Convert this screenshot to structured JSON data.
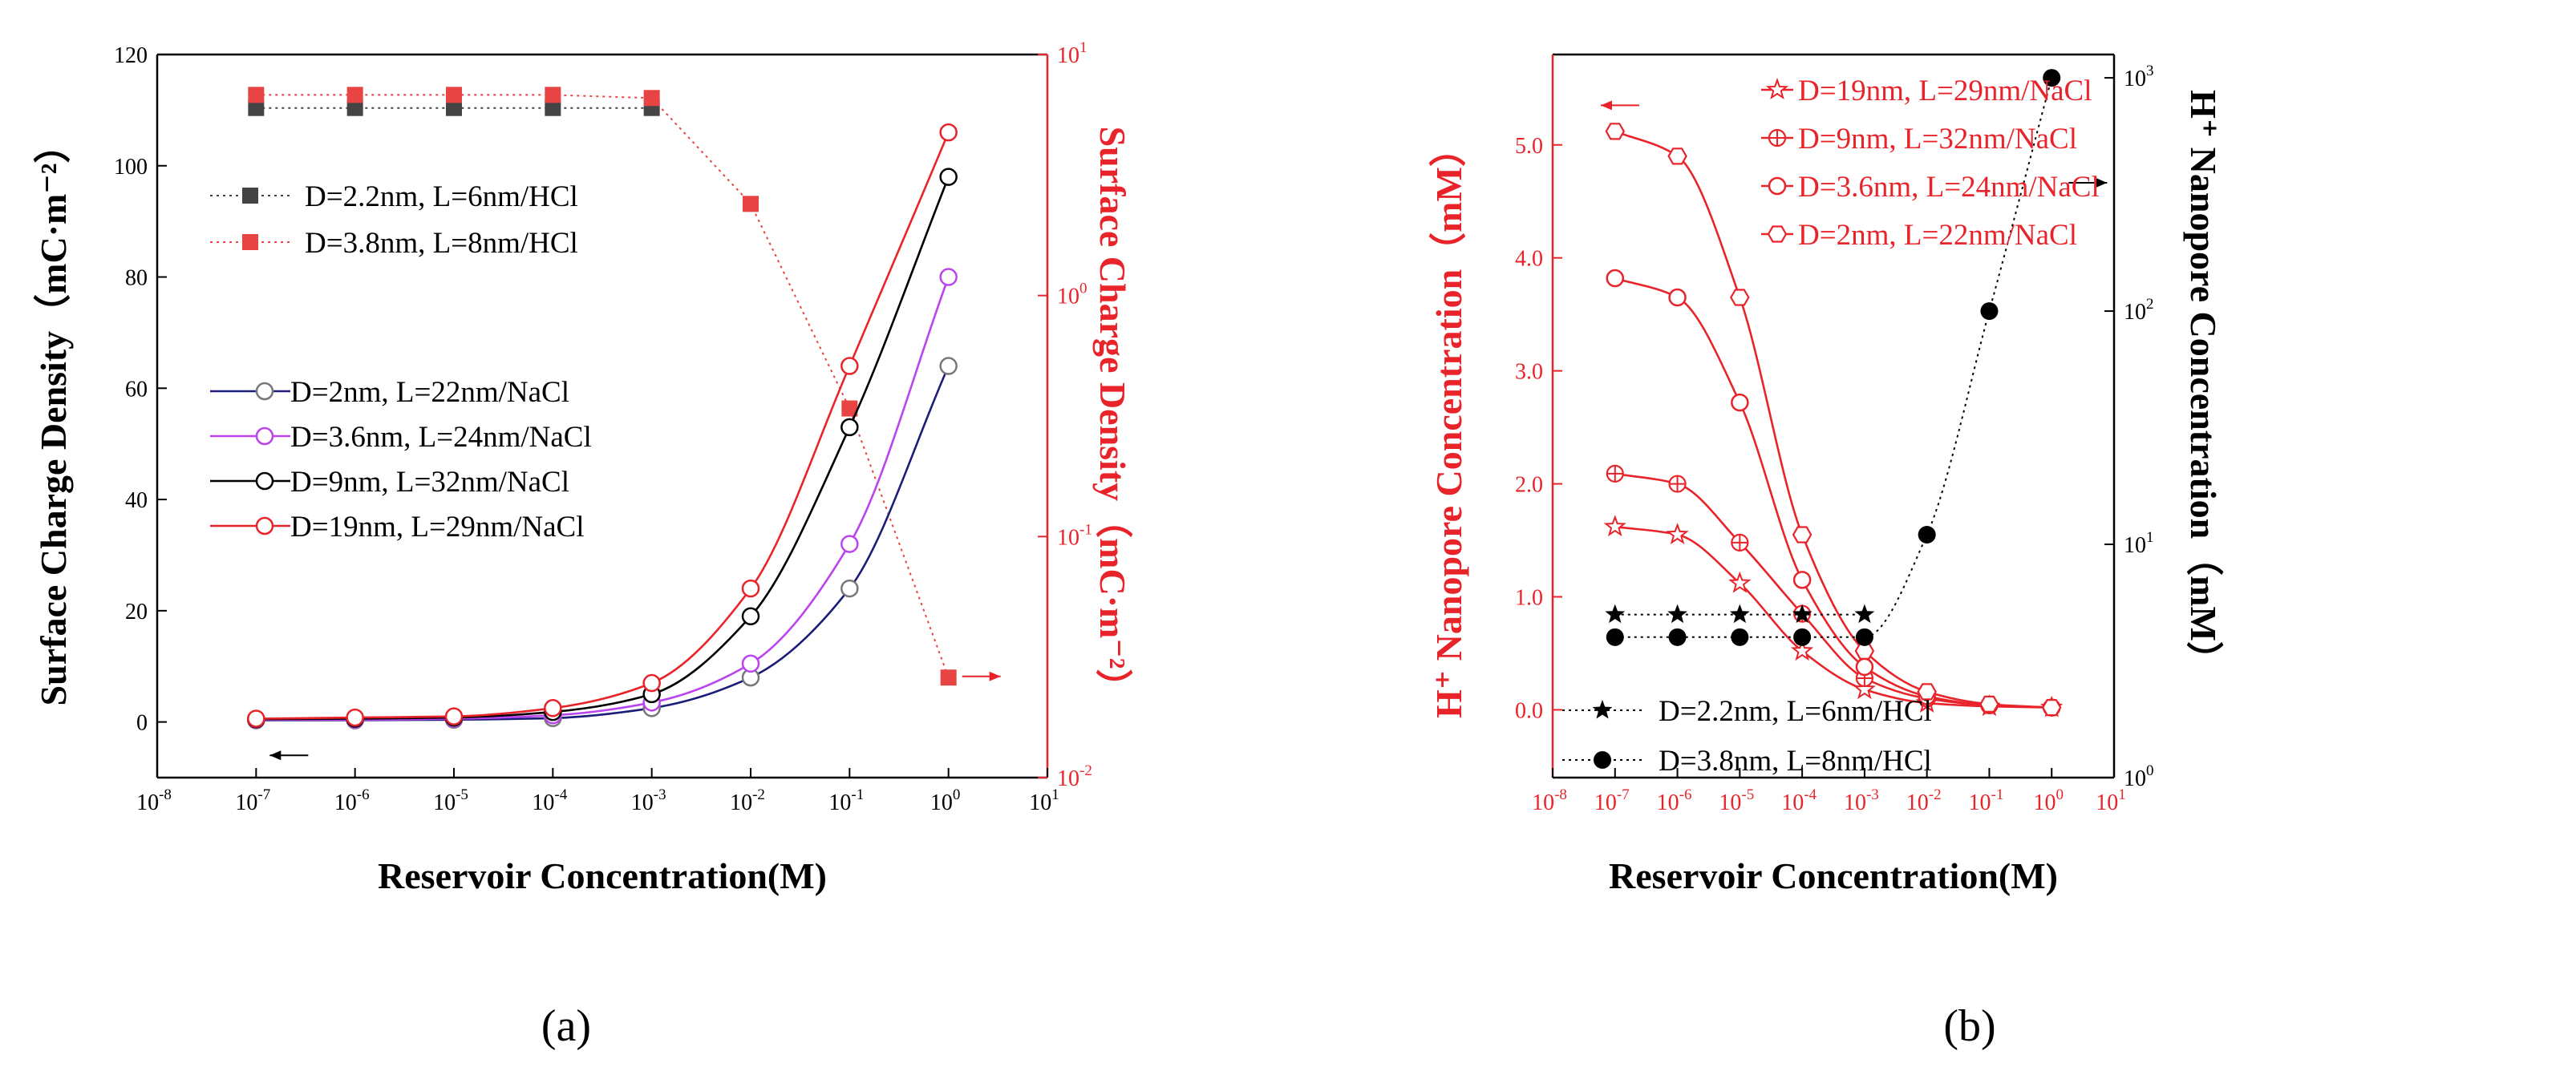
{
  "colors": {
    "black": "#000000",
    "red": "#e8242a",
    "darkgray": "#444444",
    "navy": "#1c1c7a",
    "violet": "#bb44ee",
    "sqred": "#e84444",
    "gridgray": "#555555"
  },
  "chart_data": [
    {
      "panel_label": "(a)",
      "type": "line",
      "xlabel": "Reservoir Concentration(M)",
      "ylabel_left": "Surface Charge Density（mC·m⁻²）",
      "ylabel_right": "Surface Charge Density（mC·m⁻²）",
      "x_scale": "log",
      "xlim_exp": [
        -8,
        1
      ],
      "x_ticks": [
        {
          "base": "10",
          "exp": "-8"
        },
        {
          "base": "10",
          "exp": "-7"
        },
        {
          "base": "10",
          "exp": "-6"
        },
        {
          "base": "10",
          "exp": "-5"
        },
        {
          "base": "10",
          "exp": "-4"
        },
        {
          "base": "10",
          "exp": "-3"
        },
        {
          "base": "10",
          "exp": "-2"
        },
        {
          "base": "10",
          "exp": "-1"
        },
        {
          "base": "10",
          "exp": "0"
        },
        {
          "base": "10",
          "exp": "1"
        }
      ],
      "ylim_left": [
        -10,
        120
      ],
      "y_ticks_left": [
        "0",
        "20",
        "40",
        "60",
        "80",
        "100",
        "120"
      ],
      "ylim_right_exp": [
        -2,
        1
      ],
      "y_ticks_right": [
        {
          "base": "10",
          "exp": "-2"
        },
        {
          "base": "10",
          "exp": "-1"
        },
        {
          "base": "10",
          "exp": "0"
        },
        {
          "base": "10",
          "exp": "1"
        }
      ],
      "arrows": [
        {
          "direction": "left",
          "axis": "left",
          "x_exp": -6.7,
          "y": -6
        },
        {
          "direction": "right",
          "axis": "right",
          "x_exp": 0.3,
          "y_exp": -1.58
        }
      ],
      "legend_groups": [
        {
          "position": "top-left",
          "items": [
            "D=2.2nm,  L=6nm/HCl",
            "D=3.8nm,  L=8nm/HCl"
          ]
        },
        {
          "position": "center-left",
          "items": [
            "D=2nm,  L=22nm/NaCl",
            "D=3.6nm,  L=24nm/NaCl",
            "D=9nm,  L=32nm/NaCl",
            "D=19nm,  L=29nm/NaCl"
          ]
        }
      ],
      "series": [
        {
          "name": "D=2.2nm,  L=6nm/HCl",
          "axis": "right",
          "marker": "square",
          "color": "#444444",
          "linestyle": "dotted",
          "x_exp": [
            -7,
            -6,
            -5,
            -4,
            -3
          ],
          "values": [
            6.0,
            6.0,
            6.0,
            6.0,
            6.0
          ]
        },
        {
          "name": "D=3.8nm,  L=8nm/HCl",
          "axis": "right",
          "marker": "square",
          "color": "#e84444",
          "linestyle": "dotted",
          "x_exp": [
            -7,
            -6,
            -5,
            -4,
            -3,
            -2,
            -1,
            0
          ],
          "values": [
            6.8,
            6.8,
            6.8,
            6.8,
            6.6,
            2.4,
            0.34,
            0.026
          ]
        },
        {
          "name": "D=2nm,  L=22nm/NaCl",
          "axis": "left",
          "marker": "circle-open",
          "color": "#1c1c7a",
          "linestyle": "solid",
          "x_exp": [
            -7,
            -6,
            -5,
            -4,
            -3,
            -2,
            -1,
            0
          ],
          "values": [
            0.3,
            0.3,
            0.4,
            0.7,
            2.5,
            8,
            24,
            64
          ]
        },
        {
          "name": "D=3.6nm,  L=24nm/NaCl",
          "axis": "left",
          "marker": "circle-open",
          "color": "#bb44ee",
          "linestyle": "solid",
          "x_exp": [
            -7,
            -6,
            -5,
            -4,
            -3,
            -2,
            -1,
            0
          ],
          "values": [
            0.4,
            0.4,
            0.6,
            1.2,
            3.5,
            10.5,
            32,
            80
          ]
        },
        {
          "name": "D=9nm,  L=32nm/NaCl",
          "axis": "left",
          "marker": "circle-open",
          "color": "#000000",
          "linestyle": "solid",
          "x_exp": [
            -7,
            -6,
            -5,
            -4,
            -3,
            -2,
            -1,
            0
          ],
          "values": [
            0.5,
            0.6,
            0.8,
            1.8,
            5,
            19,
            53,
            98
          ]
        },
        {
          "name": "D=19nm,  L=29nm/NaCl",
          "axis": "left",
          "marker": "circle-open",
          "color": "#e8242a",
          "linestyle": "solid",
          "x_exp": [
            -7,
            -6,
            -5,
            -4,
            -3,
            -2,
            -1,
            0
          ],
          "values": [
            0.6,
            0.8,
            1.0,
            2.5,
            7,
            24,
            64,
            106
          ]
        }
      ]
    },
    {
      "panel_label": "(b)",
      "type": "line",
      "xlabel": "Reservoir  Concentration(M)",
      "ylabel_left": "H⁺ Nanopore  Concentration（mM）",
      "ylabel_right": "H⁺ Nanopore  Concentration（mM）",
      "x_scale": "log",
      "xlim_exp": [
        -8,
        1
      ],
      "x_ticks": [
        {
          "base": "10",
          "exp": "-8"
        },
        {
          "base": "10",
          "exp": "-7"
        },
        {
          "base": "10",
          "exp": "-6"
        },
        {
          "base": "10",
          "exp": "-5"
        },
        {
          "base": "10",
          "exp": "-4"
        },
        {
          "base": "10",
          "exp": "-3"
        },
        {
          "base": "10",
          "exp": "-2"
        },
        {
          "base": "10",
          "exp": "-1"
        },
        {
          "base": "10",
          "exp": "0"
        },
        {
          "base": "10",
          "exp": "1"
        }
      ],
      "ylim_left": [
        -0.6,
        5.8
      ],
      "y_ticks_left": [
        "0.0",
        "1.0",
        "2.0",
        "3.0",
        "4.0",
        "5.0"
      ],
      "ylim_right_exp": [
        0,
        3.1
      ],
      "y_ticks_right": [
        {
          "base": "10",
          "exp": "0"
        },
        {
          "base": "10",
          "exp": "1"
        },
        {
          "base": "10",
          "exp": "2"
        },
        {
          "base": "10",
          "exp": "3"
        }
      ],
      "arrows": [
        {
          "direction": "left",
          "axis": "left",
          "x_exp": -7.1,
          "y": 5.35
        },
        {
          "direction": "right",
          "axis": "right",
          "x_exp": 0.4,
          "y_exp": 2.55
        }
      ],
      "legend_groups": [
        {
          "position": "top-right",
          "items": [
            "D=19nm,  L=29nm/NaCl",
            "D=9nm,  L=32nm/NaCl",
            "D=3.6nm,  L=24nm/NaCl",
            "D=2nm,  L=22nm/NaCl"
          ]
        },
        {
          "position": "bottom-left",
          "items": [
            "D=2.2nm,  L=6nm/HCl",
            "D=3.8nm,  L=8nm/HCl"
          ]
        }
      ],
      "series": [
        {
          "name": "D=19nm,  L=29nm/NaCl",
          "axis": "left",
          "marker": "star-open",
          "color": "#e8242a",
          "linestyle": "solid",
          "x_exp": [
            -7,
            -6,
            -5,
            -4,
            -3,
            -2,
            -1,
            0
          ],
          "values": [
            1.62,
            1.55,
            1.12,
            0.52,
            0.18,
            0.06,
            0.03,
            0.02
          ]
        },
        {
          "name": "D=9nm,  L=32nm/NaCl",
          "axis": "left",
          "marker": "circle-plus",
          "color": "#e8242a",
          "linestyle": "solid",
          "x_exp": [
            -7,
            -6,
            -5,
            -4,
            -3,
            -2,
            -1,
            0
          ],
          "values": [
            2.09,
            2.0,
            1.48,
            0.85,
            0.28,
            0.1,
            0.04,
            0.02
          ]
        },
        {
          "name": "D=3.6nm,  L=24nm/NaCl",
          "axis": "left",
          "marker": "circle-open",
          "color": "#e8242a",
          "linestyle": "solid",
          "x_exp": [
            -7,
            -6,
            -5,
            -4,
            -3,
            -2,
            -1,
            0
          ],
          "values": [
            3.82,
            3.65,
            2.72,
            1.15,
            0.38,
            0.12,
            0.04,
            0.02
          ]
        },
        {
          "name": "D=2nm,  L=22nm/NaCl",
          "axis": "left",
          "marker": "hexagon-open",
          "color": "#e8242a",
          "linestyle": "solid",
          "x_exp": [
            -7,
            -6,
            -5,
            -4,
            -3,
            -2,
            -1,
            0
          ],
          "values": [
            5.12,
            4.9,
            3.65,
            1.55,
            0.52,
            0.16,
            0.05,
            0.02
          ]
        },
        {
          "name": "D=2.2nm,  L=6nm/HCl",
          "axis": "right",
          "marker": "star",
          "color": "#000000",
          "linestyle": "dotted",
          "x_exp": [
            -7,
            -6,
            -5,
            -4,
            -3
          ],
          "values": [
            5,
            5,
            5,
            5,
            5
          ]
        },
        {
          "name": "D=3.8nm,  L=8nm/HCl",
          "axis": "right",
          "marker": "circle",
          "color": "#000000",
          "linestyle": "dotted",
          "x_exp": [
            -7,
            -6,
            -5,
            -4,
            -3,
            -2,
            -1,
            0
          ],
          "values": [
            4,
            4,
            4,
            4,
            4,
            11,
            100,
            1000
          ]
        }
      ]
    }
  ]
}
